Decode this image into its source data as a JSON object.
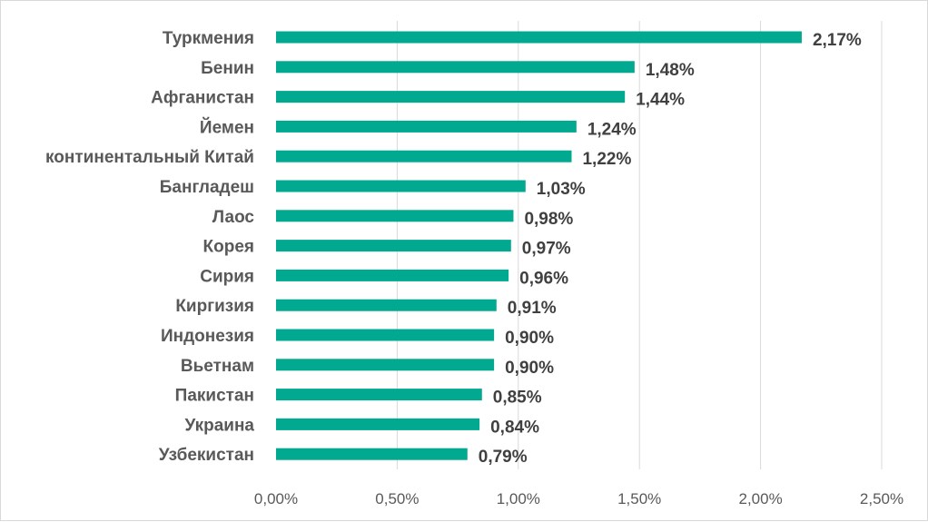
{
  "chart_data": {
    "type": "bar",
    "orientation": "horizontal",
    "title": "",
    "xlabel": "",
    "ylabel": "",
    "categories": [
      "Туркмения",
      "Бенин",
      "Афганистан",
      "Йемен",
      "континентальный Китай",
      "Бангладеш",
      "Лаос",
      "Корея",
      "Сирия",
      "Киргизия",
      "Индонезия",
      "Вьетнам",
      "Пакистан",
      "Украина",
      "Узбекистан"
    ],
    "values": [
      2.17,
      1.48,
      1.44,
      1.24,
      1.22,
      1.03,
      0.98,
      0.97,
      0.96,
      0.91,
      0.9,
      0.9,
      0.85,
      0.84,
      0.79
    ],
    "data_labels": [
      "2,17%",
      "1,48%",
      "1,44%",
      "1,24%",
      "1,22%",
      "1,03%",
      "0,98%",
      "0,97%",
      "0,96%",
      "0,91%",
      "0,90%",
      "0,90%",
      "0,85%",
      "0,84%",
      "0,79%"
    ],
    "xlim": [
      0,
      2.5
    ],
    "x_ticks": [
      0,
      0.5,
      1.0,
      1.5,
      2.0,
      2.5
    ],
    "x_tick_labels": [
      "0,00%",
      "0,50%",
      "1,00%",
      "1,50%",
      "2,00%",
      "2,50%"
    ],
    "grid": "vertical",
    "legend": "none",
    "bar_color": "#00a98f"
  }
}
